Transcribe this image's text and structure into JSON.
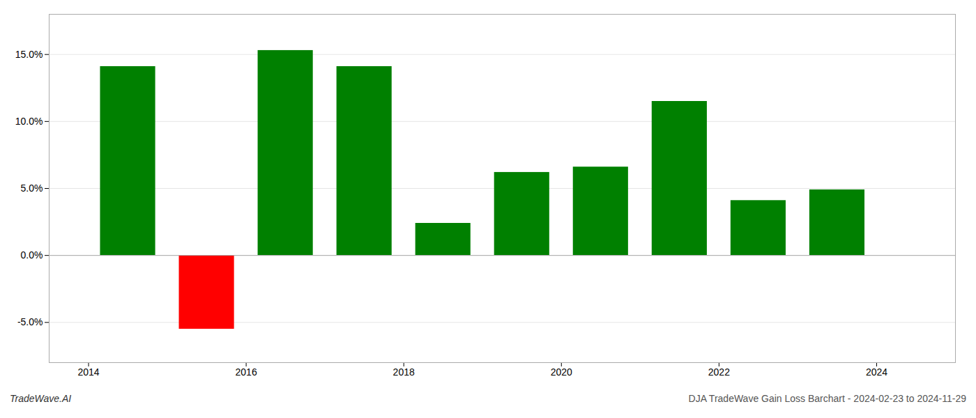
{
  "chart_data": {
    "type": "bar",
    "x": [
      2014.5,
      2015.5,
      2016.5,
      2017.5,
      2018.5,
      2019.5,
      2020.5,
      2021.5,
      2022.5,
      2023.5
    ],
    "values": [
      0.141,
      -0.055,
      0.153,
      0.141,
      0.024,
      0.062,
      0.066,
      0.115,
      0.041,
      0.049
    ],
    "colors": [
      "#008000",
      "#ff0000",
      "#008000",
      "#008000",
      "#008000",
      "#008000",
      "#008000",
      "#008000",
      "#008000",
      "#008000"
    ],
    "xlim": [
      2013.5,
      2025.0
    ],
    "xticks": [
      2014,
      2016,
      2018,
      2020,
      2022,
      2024
    ],
    "ylim": [
      -0.08,
      0.18
    ],
    "yticks": [
      {
        "value": -0.05,
        "label": "-5.0%"
      },
      {
        "value": 0.0,
        "label": "0.0%"
      },
      {
        "value": 0.05,
        "label": "5.0%"
      },
      {
        "value": 0.1,
        "label": "10.0%"
      },
      {
        "value": 0.15,
        "label": "15.0%"
      }
    ],
    "grid": true,
    "annotations": [
      "TradeWave.AI",
      "DJA TradeWave Gain Loss Barchart - 2024-02-23 to 2024-11-29"
    ]
  }
}
